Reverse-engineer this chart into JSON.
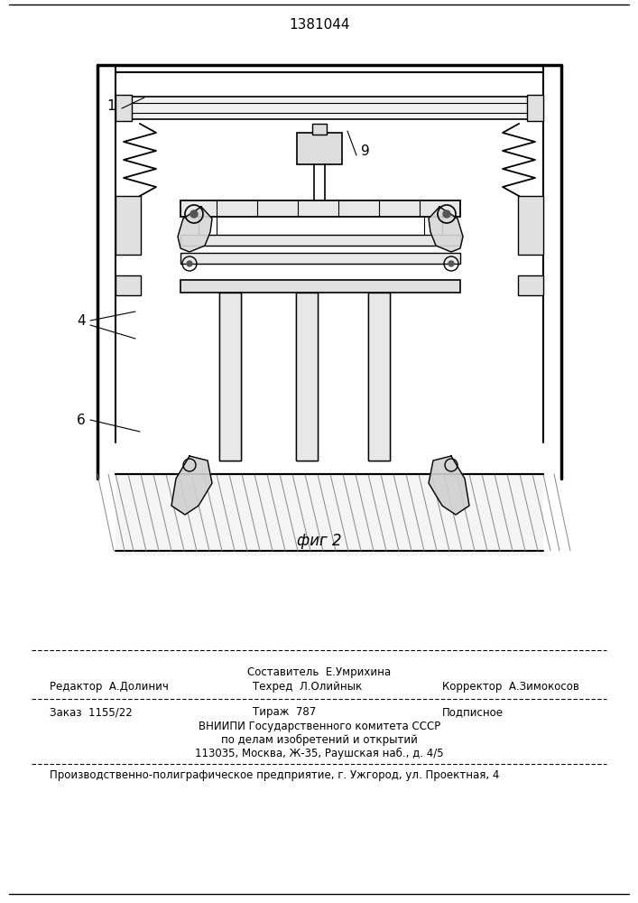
{
  "patent_number": "1381044",
  "fig_label": "фиг 2",
  "bg_color": "#ffffff",
  "footer": {
    "row1_center_top": "Составитель  Е.Умрихина",
    "row1_left": "Редактор  А.Долинич",
    "row1_center_bot": "Техред  Л.Олийнык",
    "row1_right": "Корректор  А.Зимокосов",
    "row2_col1": "Заказ  1155/22",
    "row2_col2": "Тираж  787",
    "row2_col3": "Подписное",
    "row3": "ВНИИПИ Государственного комитета СССР",
    "row4": "по делам изобретений и открытий",
    "row5": "113035, Москва, Ж-35, Раушская наб., д. 4/5",
    "last_row": "Производственно-полиграфическое предприятие, г. Ужгород, ул. Проектная, 4"
  }
}
